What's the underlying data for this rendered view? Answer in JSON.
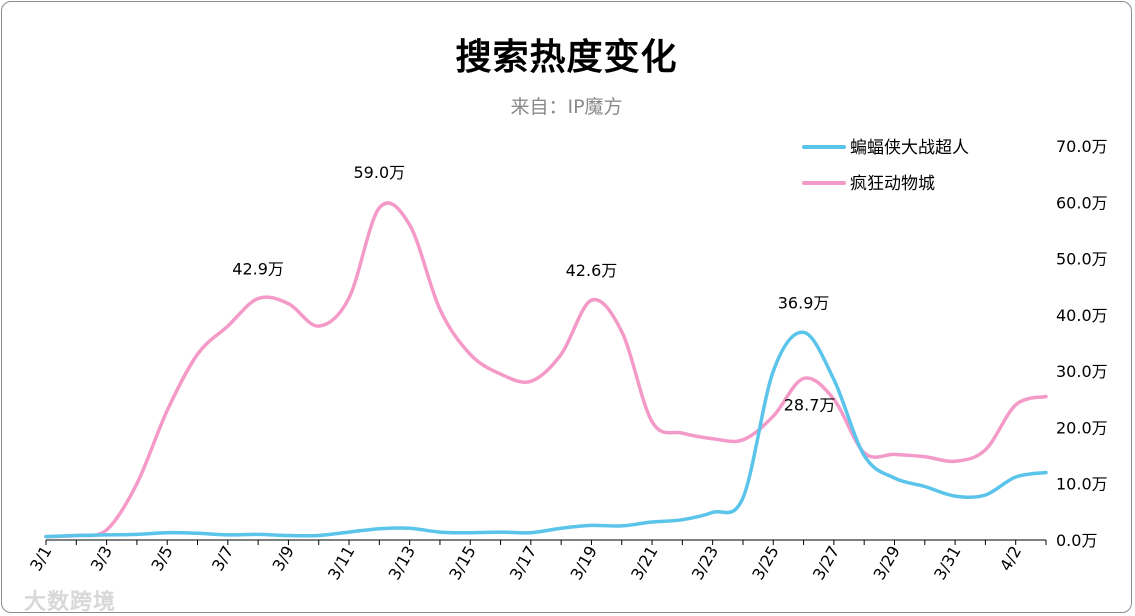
{
  "chart_data": {
    "type": "line",
    "title": "搜索热度变化",
    "subtitle": "来自：IP魔方",
    "ylim": [
      0,
      70
    ],
    "y_ticks": [
      "0.0万",
      "10.0万",
      "20.0万",
      "30.0万",
      "40.0万",
      "50.0万",
      "60.0万",
      "70.0万"
    ],
    "x_tick_labels": [
      "3/1",
      "3/3",
      "3/5",
      "3/7",
      "3/9",
      "3/11",
      "3/13",
      "3/15",
      "3/17",
      "3/19",
      "3/21",
      "3/23",
      "3/25",
      "3/27",
      "3/29",
      "3/31",
      "4/2"
    ],
    "x": [
      "3/1",
      "3/2",
      "3/3",
      "3/4",
      "3/5",
      "3/6",
      "3/7",
      "3/8",
      "3/9",
      "3/10",
      "3/11",
      "3/12",
      "3/13",
      "3/14",
      "3/15",
      "3/16",
      "3/17",
      "3/18",
      "3/19",
      "3/20",
      "3/21",
      "3/22",
      "3/23",
      "3/24",
      "3/25",
      "3/26",
      "3/27",
      "3/28",
      "3/29",
      "3/30",
      "3/31",
      "4/1",
      "4/2",
      "4/3"
    ],
    "legend_position": "top-right",
    "series": [
      {
        "name": "蝙蝠侠大战超人",
        "color": "#5bc4ea",
        "values": [
          0.6,
          0.8,
          0.9,
          1.0,
          1.3,
          1.2,
          0.9,
          1.0,
          0.8,
          0.8,
          1.4,
          2.0,
          2.1,
          1.4,
          1.3,
          1.4,
          1.3,
          2.1,
          2.6,
          2.5,
          3.2,
          3.6,
          4.9,
          7.5,
          30.0,
          36.9,
          28.5,
          15.0,
          11.0,
          9.5,
          7.8,
          8.0,
          11.2,
          12.0
        ]
      },
      {
        "name": "疯狂动物城",
        "color": "#f49ac8",
        "values": [
          0.6,
          0.8,
          1.8,
          10.0,
          23.0,
          33.0,
          38.0,
          42.9,
          42.0,
          38.0,
          43.0,
          59.0,
          56.0,
          41.0,
          33.0,
          29.5,
          28.2,
          33.0,
          42.6,
          37.0,
          21.0,
          19.0,
          18.0,
          17.8,
          22.0,
          28.7,
          25.0,
          15.5,
          15.2,
          14.8,
          14.0,
          16.0,
          24.0,
          25.5
        ]
      }
    ],
    "data_labels": [
      {
        "series": "疯狂动物城",
        "x": "3/8",
        "text": "42.9万"
      },
      {
        "series": "疯狂动物城",
        "x": "3/12",
        "text": "59.0万"
      },
      {
        "series": "疯狂动物城",
        "x": "3/19",
        "text": "42.6万"
      },
      {
        "series": "疯狂动物城",
        "x": "3/26",
        "text": "28.7万"
      },
      {
        "series": "蝙蝠侠大战超人",
        "x": "3/26",
        "text": "36.9万"
      }
    ]
  },
  "watermark": "大数跨境"
}
